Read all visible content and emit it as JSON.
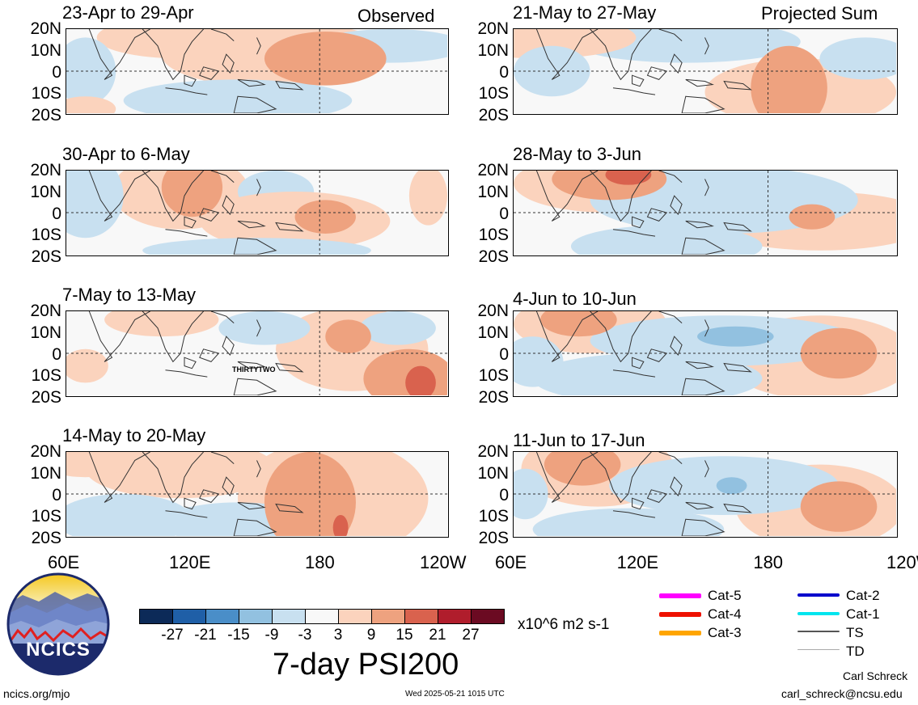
{
  "header": {
    "left_label": "Observed",
    "right_label": "Projected Sum"
  },
  "panels": [
    {
      "title": "23-Apr to 29-Apr"
    },
    {
      "title": "30-Apr to 6-May"
    },
    {
      "title": "7-May to 13-May",
      "annotation": "THIRTYTWO"
    },
    {
      "title": "14-May to 20-May"
    },
    {
      "title": "21-May to 27-May"
    },
    {
      "title": "28-May to 3-Jun"
    },
    {
      "title": "4-Jun to 10-Jun"
    },
    {
      "title": "11-Jun to 17-Jun"
    }
  ],
  "axes": {
    "lat_labels": [
      "20N",
      "10N",
      "0",
      "10S",
      "20S"
    ],
    "lon_labels": [
      "60E",
      "120E",
      "180",
      "120W"
    ]
  },
  "colorbar": {
    "title": "7-day PSI200",
    "units": "x10^6 m2 s-1",
    "tick_labels": [
      "-27",
      "-21",
      "-15",
      "-9",
      "-3",
      "3",
      "9",
      "15",
      "21",
      "27"
    ],
    "colors": [
      "#0c2a58",
      "#1f5fa7",
      "#4a8ec8",
      "#92c1e0",
      "#c8e0f0",
      "#f8f8f8",
      "#fbd3bd",
      "#eea27f",
      "#d9624e",
      "#b01d2c",
      "#6b0a22"
    ]
  },
  "legend": {
    "items": [
      {
        "label": "Cat-5",
        "color": "#ff00ff"
      },
      {
        "label": "Cat-4",
        "color": "#ee1100"
      },
      {
        "label": "Cat-3",
        "color": "#ffa500"
      },
      {
        "label": "Cat-2",
        "color": "#0000cc"
      },
      {
        "label": "Cat-1",
        "color": "#00e5ee"
      },
      {
        "label": "TS",
        "color": "#555555"
      },
      {
        "label": "TD",
        "color": "#aaaaaa"
      }
    ]
  },
  "logo": {
    "text": "NCICS"
  },
  "footer": {
    "url": "ncics.org/mjo",
    "timestamp": "Wed 2025-05-21 1015 UTC",
    "author": "Carl Schreck",
    "email": "carl_schreck@ncsu.edu"
  }
}
